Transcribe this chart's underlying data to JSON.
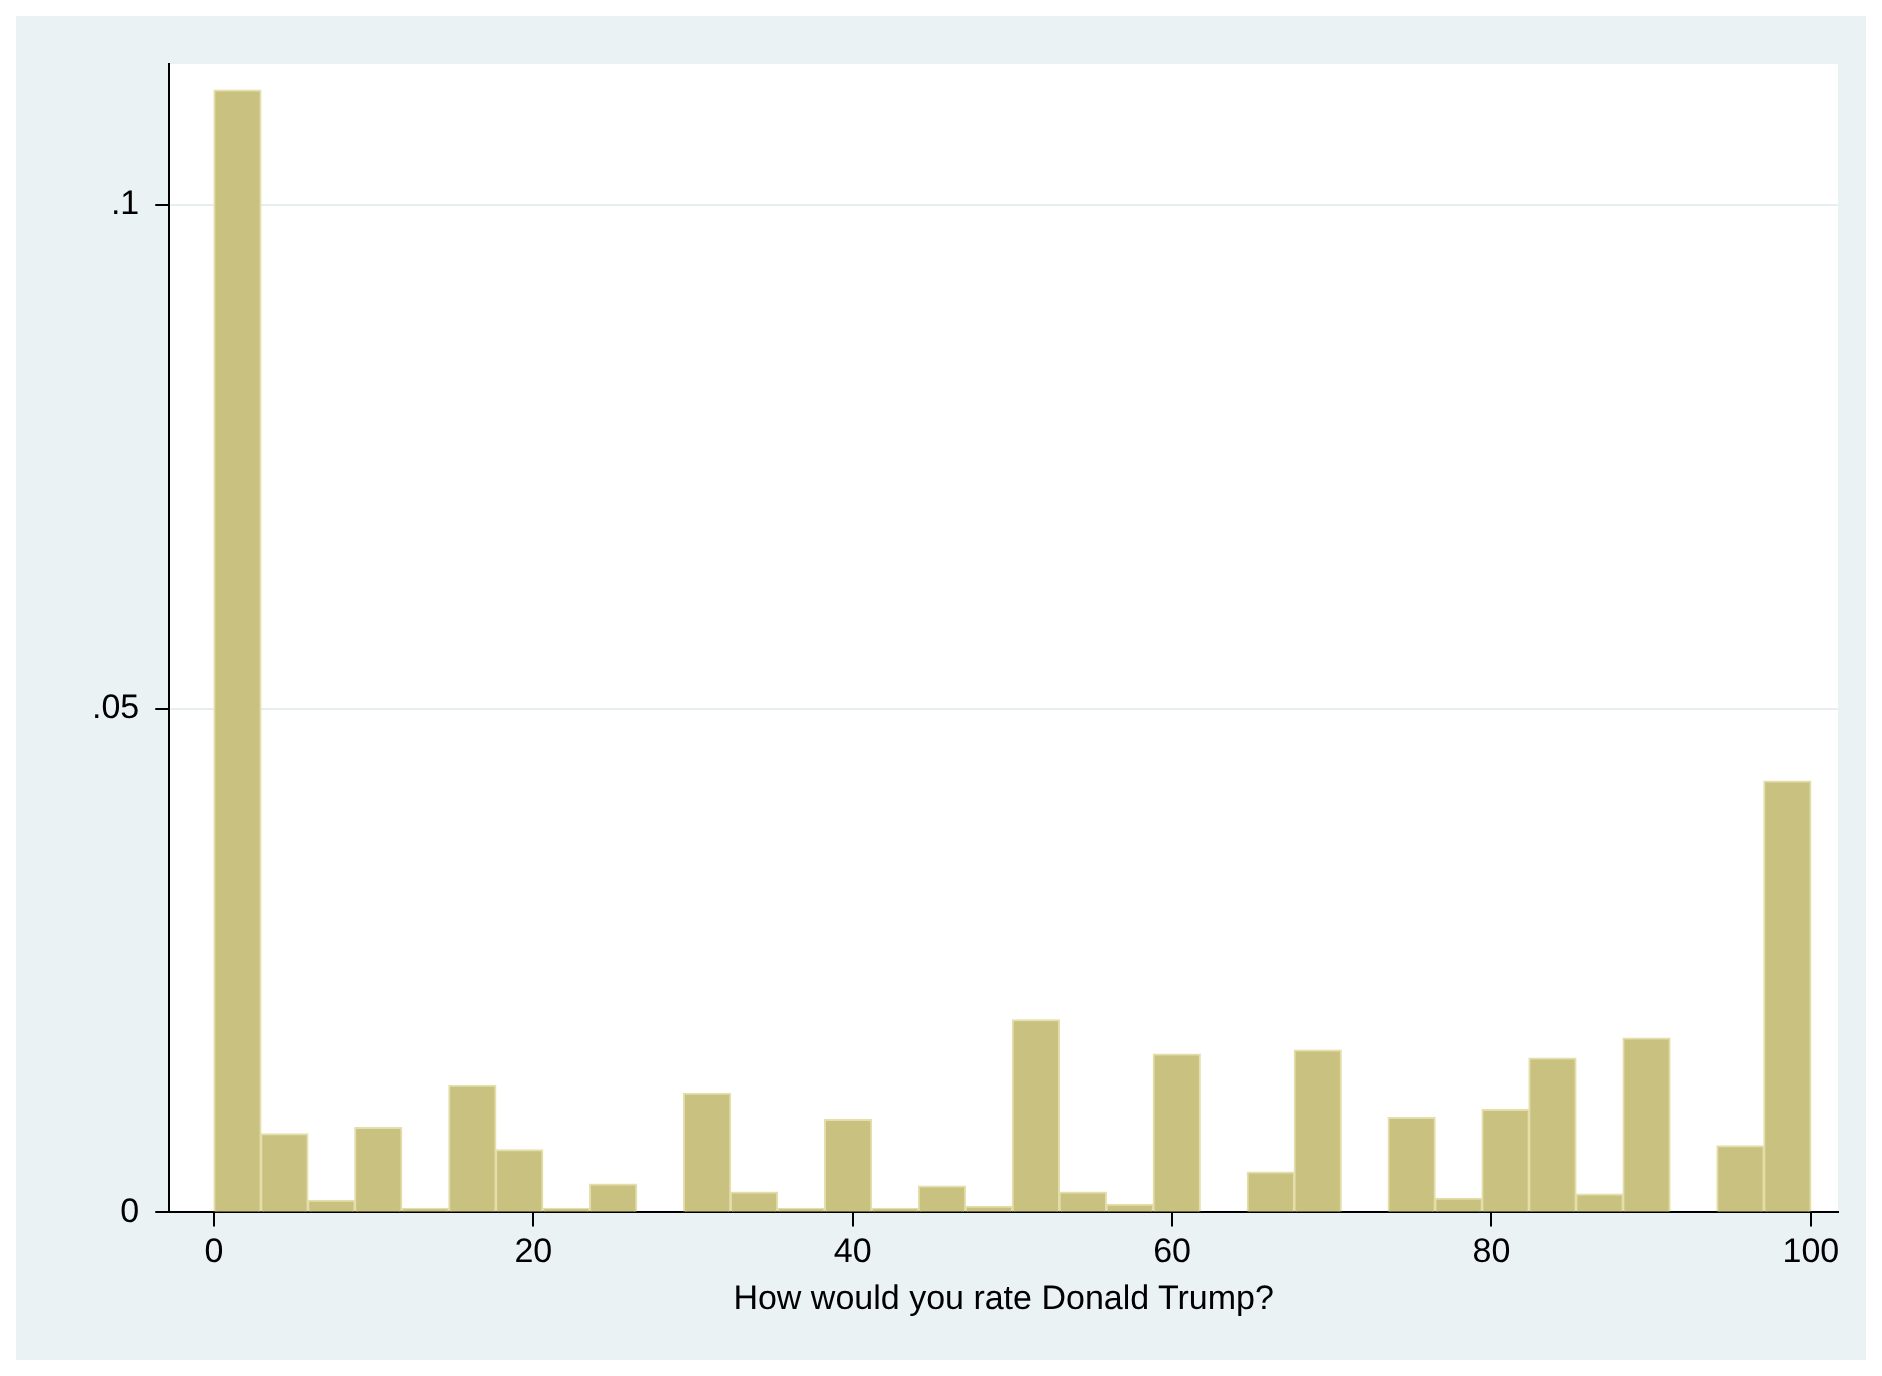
{
  "chart_data": {
    "type": "histogram",
    "xlabel": "How would you rate Donald Trump?",
    "bins": [
      0,
      2.94,
      5.88,
      8.82,
      11.76,
      14.71,
      17.65,
      20.59,
      23.53,
      26.47,
      29.41,
      32.35,
      35.29,
      38.24,
      41.18,
      44.12,
      47.06,
      50,
      52.94,
      55.88,
      58.82,
      61.76,
      64.71,
      67.65,
      70.59,
      73.53,
      76.47,
      79.41,
      82.35,
      85.29,
      88.24,
      91.18,
      94.12,
      97.06,
      100
    ],
    "values": [
      0.1114,
      0.0078,
      0.0012,
      0.0084,
      0.0004,
      0.0126,
      0.0062,
      0.0004,
      0.0028,
      0,
      0.0118,
      0.002,
      0.0004,
      0.0092,
      0.0004,
      0.0026,
      0.0006,
      0.0191,
      0.002,
      0.0008,
      0.0157,
      0,
      0.004,
      0.0161,
      0,
      0.0094,
      0.0014,
      0.0102,
      0.0153,
      0.0018,
      0.0173,
      0,
      0.0066,
      0.0428
    ],
    "color": "#c9c17f",
    "xlim": [
      -2.8,
      101.7
    ],
    "xticks": [
      0,
      20,
      40,
      60,
      80,
      100
    ],
    "ylim": [
      0,
      0.114
    ],
    "yticks": [
      0,
      {
        "value": 0.05,
        "label": ".05"
      },
      {
        "value": 0.1,
        "label": ".1"
      }
    ],
    "grid": "y"
  }
}
